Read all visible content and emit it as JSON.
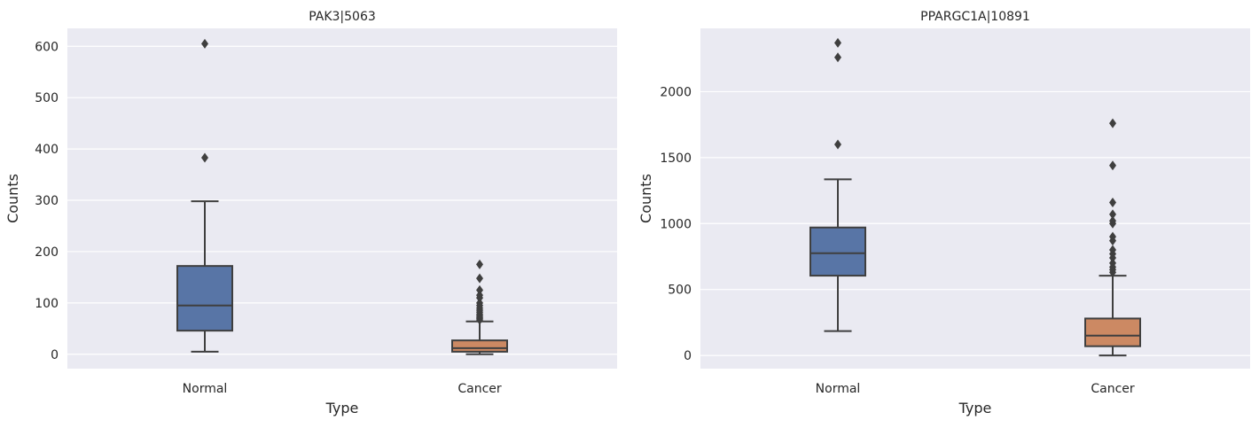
{
  "chart_data": [
    {
      "type": "box",
      "title": "PAK3|5063",
      "xlabel": "Type",
      "ylabel": "Counts",
      "categories": [
        "Normal",
        "Cancer"
      ],
      "colors": [
        "#5875a6",
        "#cc8963"
      ],
      "ylim": [
        -28,
        635
      ],
      "yticks": [
        0,
        100,
        200,
        300,
        400,
        500,
        600
      ],
      "grid": true,
      "boxes": [
        {
          "category": "Normal",
          "whisker_low": 5,
          "q1": 46,
          "median": 95,
          "q3": 172,
          "whisker_high": 298,
          "outliers": [
            383,
            605
          ]
        },
        {
          "category": "Cancer",
          "whisker_low": 0,
          "q1": 5,
          "median": 12,
          "q3": 27,
          "whisker_high": 64,
          "outliers": [
            67,
            70,
            72,
            75,
            78,
            82,
            86,
            90,
            95,
            100,
            110,
            115,
            125,
            148,
            175
          ]
        }
      ]
    },
    {
      "type": "box",
      "title": "PPARGC1A|10891",
      "xlabel": "Type",
      "ylabel": "Counts",
      "categories": [
        "Normal",
        "Cancer"
      ],
      "colors": [
        "#5875a6",
        "#cc8963"
      ],
      "ylim": [
        -100,
        2480
      ],
      "yticks": [
        0,
        500,
        1000,
        1500,
        2000
      ],
      "grid": true,
      "boxes": [
        {
          "category": "Normal",
          "whisker_low": 185,
          "q1": 605,
          "median": 775,
          "q3": 970,
          "whisker_high": 1335,
          "outliers": [
            1600,
            2260,
            2370
          ]
        },
        {
          "category": "Cancer",
          "whisker_low": 0,
          "q1": 70,
          "median": 150,
          "q3": 280,
          "whisker_high": 605,
          "outliers": [
            630,
            650,
            670,
            700,
            740,
            770,
            800,
            870,
            900,
            1000,
            1020,
            1070,
            1160,
            1440,
            1760
          ]
        }
      ]
    }
  ]
}
